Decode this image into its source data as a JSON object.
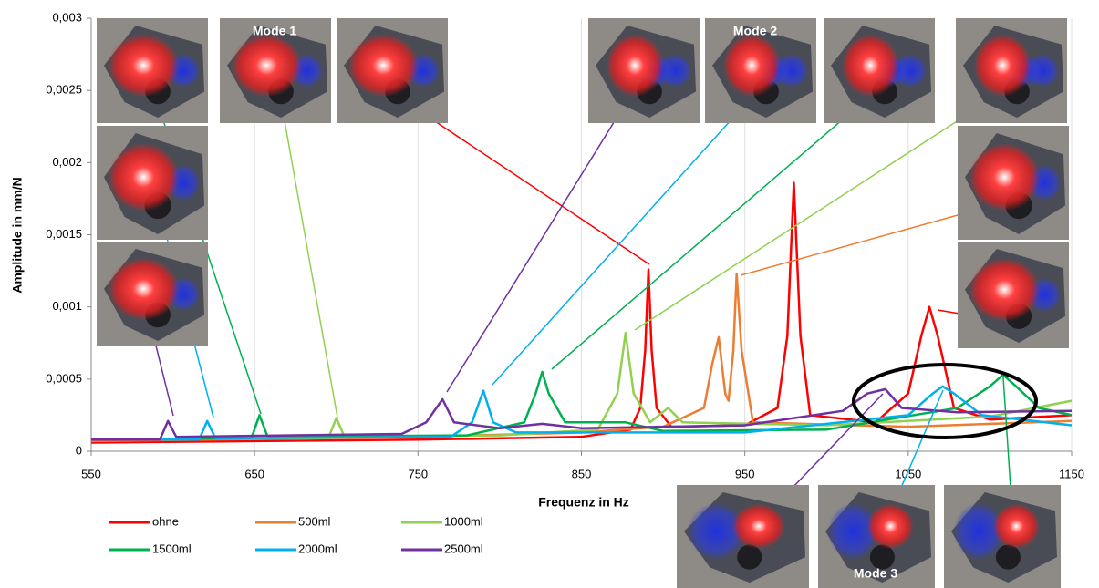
{
  "chart_data": {
    "type": "line",
    "xlabel": "Frequenz in Hz",
    "ylabel": "Amplitude in mm/N",
    "annotations": [
      "Mode 1",
      "Mode 2",
      "Mode 3"
    ],
    "xlim": [
      550,
      1150
    ],
    "xticks": [
      550,
      650,
      750,
      850,
      950,
      1050,
      1150
    ],
    "ylim": [
      0,
      0.003
    ],
    "yticks": [
      0,
      {
        "value": 0.0005,
        "label": "0,0005"
      },
      {
        "value": 0.001,
        "label": "0,001"
      },
      {
        "value": 0.0015,
        "label": "0,0015"
      },
      {
        "value": 0.002,
        "label": "0,002"
      },
      {
        "value": 0.0025,
        "label": "0,0025"
      },
      {
        "value": 0.003,
        "label": "0,003"
      }
    ],
    "grid": true,
    "series": [
      {
        "name": "ohne",
        "color": "#ff0000",
        "x": [
          550,
          650,
          750,
          850,
          880,
          886,
          889,
          891,
          893,
          896,
          905,
          950,
          970,
          976,
          980,
          984,
          990,
          1030,
          1050,
          1058,
          1063,
          1068,
          1078,
          1100,
          1150
        ],
        "values": [
          6e-05,
          7e-05,
          8e-05,
          0.0001,
          0.00015,
          0.0003,
          0.0007,
          0.00126,
          0.0007,
          0.0003,
          0.00017,
          0.00018,
          0.0003,
          0.0008,
          0.00186,
          0.0008,
          0.00025,
          0.0002,
          0.0004,
          0.0008,
          0.001,
          0.0008,
          0.0003,
          0.00022,
          0.00025
        ]
      },
      {
        "name": "500ml",
        "color": "#ed7d31",
        "x": [
          550,
          750,
          850,
          900,
          925,
          930,
          934,
          938,
          940,
          943,
          945,
          948,
          955,
          1050,
          1150
        ],
        "values": [
          7e-05,
          0.0001,
          0.00013,
          0.00017,
          0.0003,
          0.0006,
          0.00079,
          0.0004,
          0.00035,
          0.0007,
          0.00123,
          0.0007,
          0.0002,
          0.00017,
          0.00021
        ]
      },
      {
        "name": "1000ml",
        "color": "#92d050",
        "x": [
          550,
          695,
          700,
          705,
          800,
          860,
          872,
          877,
          882,
          892,
          903,
          912,
          1000,
          1100,
          1150
        ],
        "values": [
          8e-05,
          9e-05,
          0.00023,
          0.0001,
          0.00011,
          0.00015,
          0.0004,
          0.00082,
          0.0004,
          0.0002,
          0.0003,
          0.0002,
          0.00018,
          0.00024,
          0.00035
        ]
      },
      {
        "name": "1500ml",
        "color": "#00b050",
        "x": [
          550,
          648,
          653,
          658,
          780,
          815,
          822,
          826,
          830,
          840,
          877,
          900,
          1000,
          1080,
          1100,
          1108,
          1116,
          1130,
          1150
        ],
        "values": [
          8e-05,
          9e-05,
          0.00025,
          0.0001,
          0.00011,
          0.0002,
          0.0004,
          0.00055,
          0.0004,
          0.0002,
          0.0002,
          0.00014,
          0.00015,
          0.0003,
          0.00045,
          0.00053,
          0.00045,
          0.0003,
          0.00025
        ]
      },
      {
        "name": "2000ml",
        "color": "#00b0f0",
        "x": [
          550,
          616,
          621,
          626,
          770,
          783,
          790,
          796,
          810,
          950,
          1050,
          1065,
          1071,
          1078,
          1095,
          1150
        ],
        "values": [
          8e-05,
          8e-05,
          0.00021,
          9e-05,
          0.0001,
          0.0002,
          0.00042,
          0.0002,
          0.00013,
          0.00013,
          0.00025,
          0.0004,
          0.00045,
          0.0004,
          0.00025,
          0.00018
        ]
      },
      {
        "name": "2500ml",
        "color": "#7030a0",
        "x": [
          550,
          592,
          597,
          602,
          740,
          755,
          765,
          772,
          800,
          826,
          850,
          950,
          1010,
          1025,
          1036,
          1046,
          1080,
          1150
        ],
        "values": [
          8e-05,
          8e-05,
          0.00021,
          0.0001,
          0.00012,
          0.0002,
          0.00036,
          0.0002,
          0.00016,
          0.00019,
          0.00016,
          0.00018,
          0.00028,
          0.0004,
          0.00043,
          0.0003,
          0.00027,
          0.00028
        ]
      }
    ]
  }
}
